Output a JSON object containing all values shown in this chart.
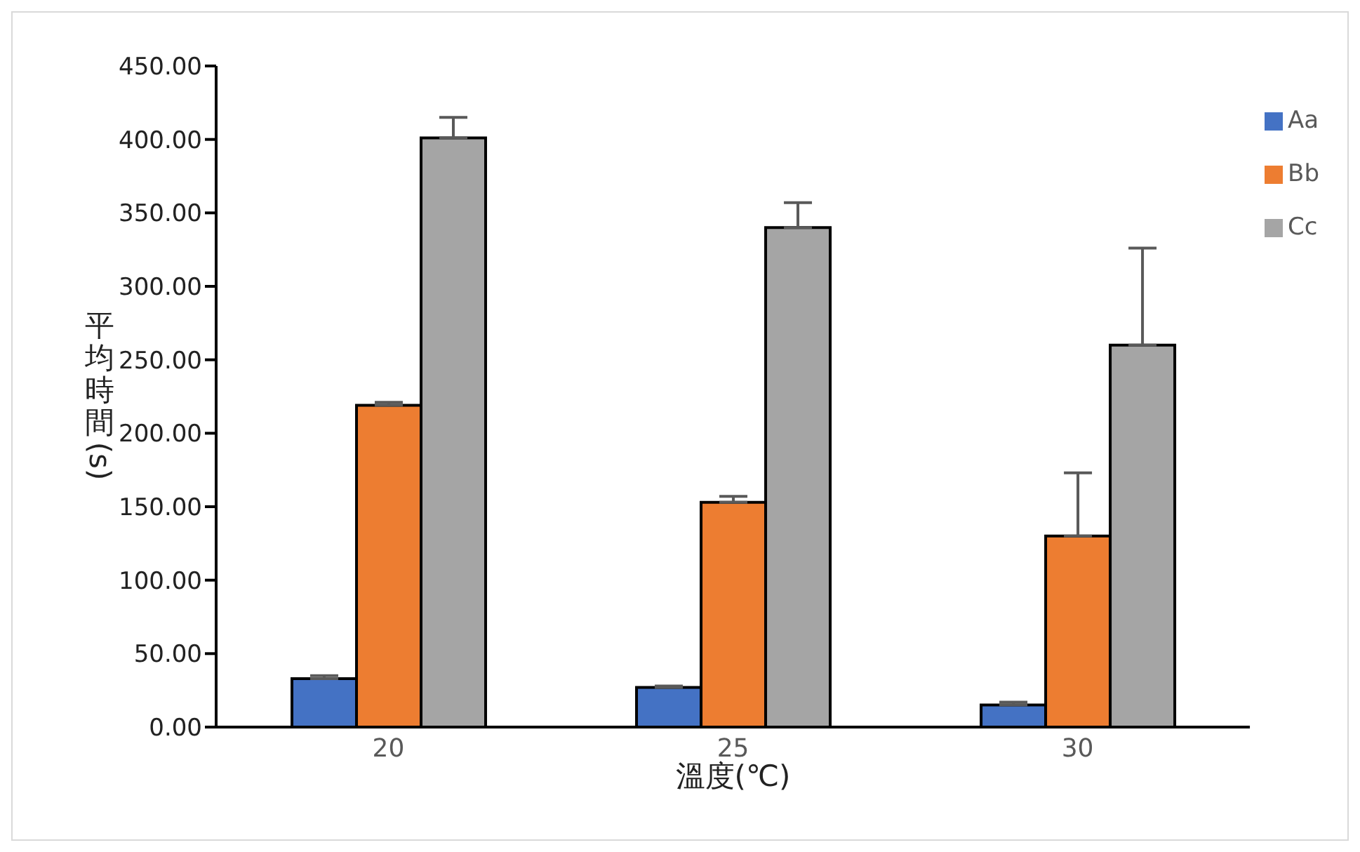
{
  "chart_data": {
    "type": "bar",
    "xlabel": "溫度(℃)",
    "ylabel": "平均時間(s)",
    "categories": [
      "20",
      "25",
      "30"
    ],
    "series": [
      {
        "name": "Aa",
        "color": "#4472c4",
        "values": [
          33,
          27,
          15
        ],
        "errors": [
          [
            33,
            35
          ],
          [
            27,
            28
          ],
          [
            15,
            17
          ]
        ]
      },
      {
        "name": "Bb",
        "color": "#ed7d31",
        "values": [
          219,
          153,
          130
        ],
        "errors": [
          [
            219,
            221
          ],
          [
            153,
            157
          ],
          [
            130,
            173
          ]
        ]
      },
      {
        "name": "Cc",
        "color": "#a5a5a5",
        "values": [
          401,
          340,
          260
        ],
        "errors": [
          [
            401,
            415
          ],
          [
            340,
            357
          ],
          [
            260,
            326
          ]
        ]
      }
    ],
    "ylim": [
      0,
      450
    ],
    "yticks": [
      {
        "value": 0,
        "label": "0.00"
      },
      {
        "value": 50,
        "label": "50.00"
      },
      {
        "value": 100,
        "label": "100.00"
      },
      {
        "value": 150,
        "label": "150.00"
      },
      {
        "value": 200,
        "label": "200.00"
      },
      {
        "value": 250,
        "label": "250.00"
      },
      {
        "value": 300,
        "label": "300.00"
      },
      {
        "value": 350,
        "label": "350.00"
      },
      {
        "value": 400,
        "label": "400.00"
      },
      {
        "value": 450,
        "label": "450.00"
      }
    ],
    "grid": false,
    "legend": "top right"
  }
}
